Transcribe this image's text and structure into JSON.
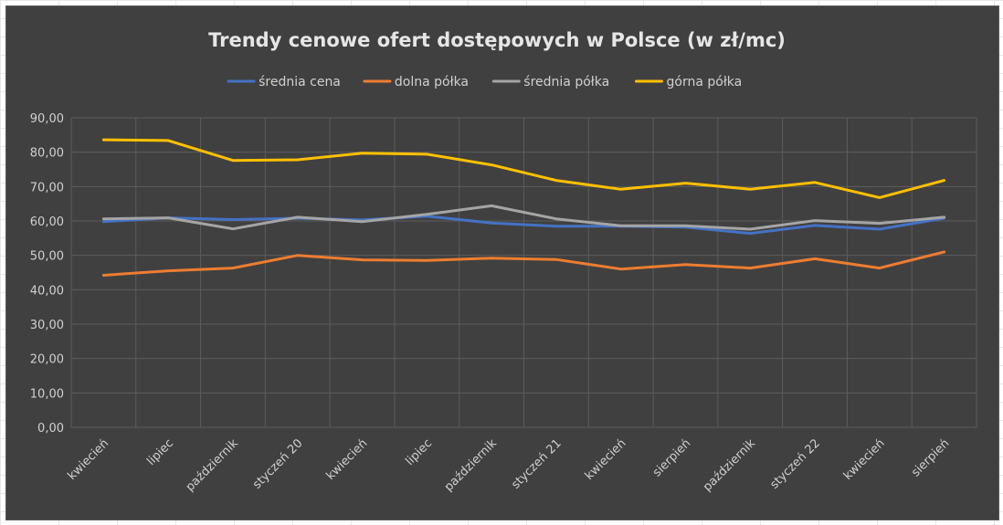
{
  "chart_data": {
    "type": "line",
    "title": "Trendy cenowe ofert dostępowych w Polsce (w zł/mc)",
    "xlabel": "",
    "ylabel": "",
    "ylim": [
      0,
      90
    ],
    "y_ticks": [
      "0,00",
      "10,00",
      "20,00",
      "30,00",
      "40,00",
      "50,00",
      "60,00",
      "70,00",
      "80,00",
      "90,00"
    ],
    "categories": [
      "kwiecień",
      "lipiec",
      "październik",
      "styczeń 20",
      "kwiecień",
      "lipiec",
      "październik",
      "styczeń 21",
      "kwiecień",
      "sierpień",
      "październik",
      "styczeń 22",
      "kwiecień",
      "sierpień"
    ],
    "grid": true,
    "legend_position": "top",
    "series": [
      {
        "name": "średnia cena",
        "color": "#4472C4",
        "values": [
          59.8,
          60.9,
          60.4,
          60.8,
          60.3,
          61.4,
          59.4,
          58.5,
          58.5,
          58.2,
          56.4,
          58.7,
          57.6,
          60.8
        ]
      },
      {
        "name": "dolna półka",
        "color": "#ED7D31",
        "values": [
          44.2,
          45.5,
          46.3,
          50.0,
          48.7,
          48.5,
          49.2,
          48.8,
          46.0,
          47.3,
          46.3,
          49.0,
          46.3,
          51.0
        ]
      },
      {
        "name": "średnia półka",
        "color": "#A5A5A5",
        "values": [
          60.6,
          60.9,
          57.7,
          61.1,
          59.8,
          61.9,
          64.4,
          60.6,
          58.6,
          58.6,
          57.6,
          60.1,
          59.3,
          61.1
        ]
      },
      {
        "name": "górna półka",
        "color": "#FFC000",
        "values": [
          83.6,
          83.4,
          77.6,
          77.8,
          79.7,
          79.4,
          76.3,
          71.8,
          69.2,
          71.0,
          69.2,
          71.2,
          66.8,
          71.8
        ]
      }
    ]
  }
}
